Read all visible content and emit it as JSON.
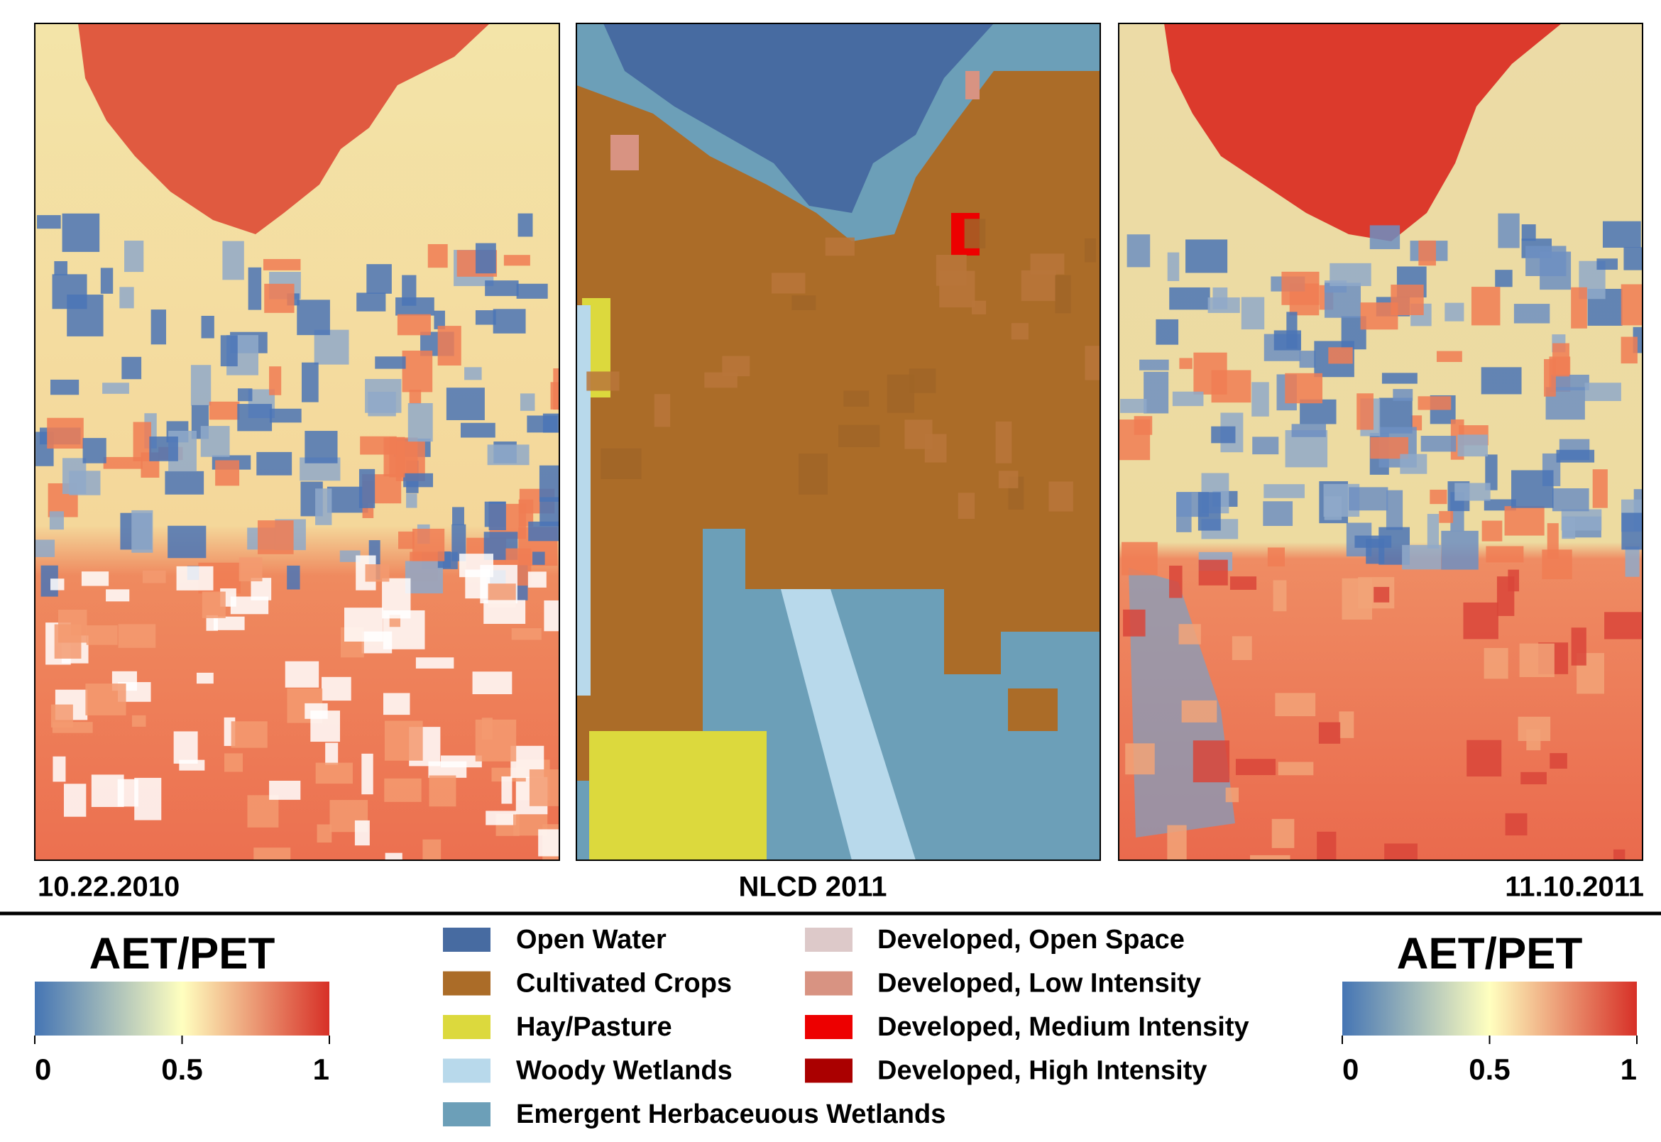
{
  "panels": [
    {
      "caption": "10.22.2010"
    },
    {
      "caption": "NLCD 2011"
    },
    {
      "caption": "11.10.2011"
    }
  ],
  "colorbars": [
    {
      "title": "AET/PET",
      "lim": [
        0,
        1
      ],
      "ticks": [
        0,
        0.5,
        1
      ]
    },
    {
      "title": "AET/PET",
      "lim": [
        0,
        1
      ],
      "ticks": [
        0,
        0.5,
        1
      ]
    }
  ],
  "legend": [
    {
      "label": "Open Water",
      "color": "#476ba1"
    },
    {
      "label": "Cultivated Crops",
      "color": "#ab6c28"
    },
    {
      "label": "Hay/Pasture",
      "color": "#dcd93d"
    },
    {
      "label": "Woody Wetlands",
      "color": "#b8d9eb"
    },
    {
      "label": "Emergent Herbaceuous Wetlands",
      "color": "#6c9fb8"
    },
    {
      "label": "Developed, Open Space",
      "color": "#ddc9c9"
    },
    {
      "label": "Developed, Low Intensity",
      "color": "#d89382"
    },
    {
      "label": "Developed, Medium Intensity",
      "color": "#ed0000"
    },
    {
      "label": "Developed, High Intensity",
      "color": "#aa0000"
    }
  ]
}
